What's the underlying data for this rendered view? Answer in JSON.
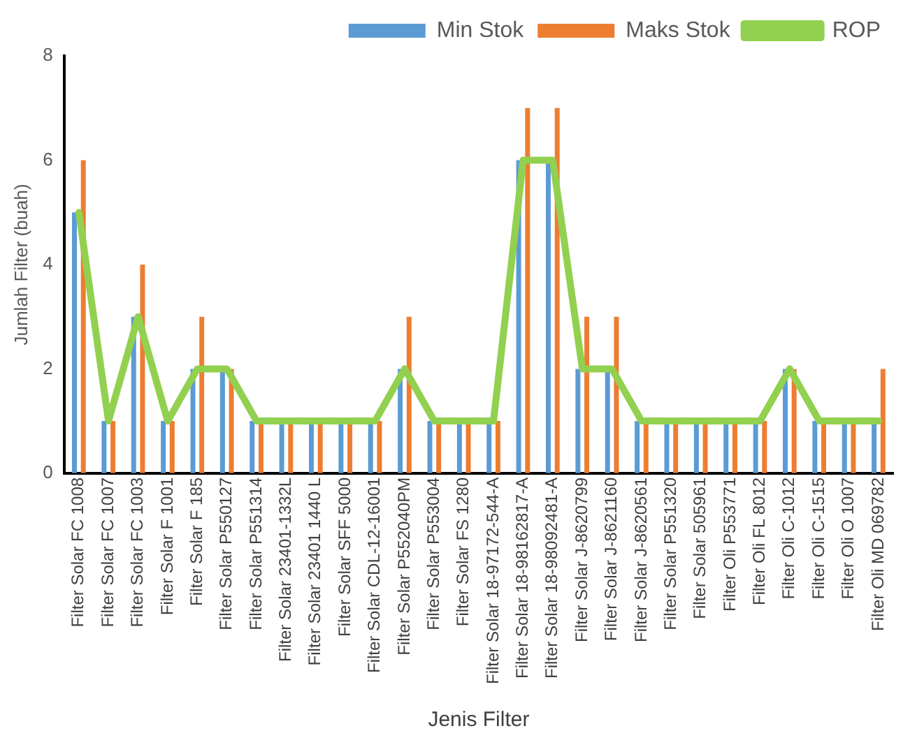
{
  "chart_data": {
    "type": "bar",
    "xlabel": "Jenis Filter",
    "ylabel": "Jumlah Filter (buah)",
    "categories": [
      "Filter Solar FC 1008",
      "Filter Solar FC 1007",
      "Filter Solar FC 1003",
      "Filter Solar F 1001",
      "Filter Solar F 185",
      "Filter Solar P550127",
      "Filter Solar P551314",
      "Filter Solar 23401-1332L",
      "Filter Solar 23401 1440 L",
      "Filter Solar SFF 5000",
      "Filter Solar CDL-12-16001",
      "Filter Solar P552040PM",
      "Filter Solar P553004",
      "Filter Solar FS 1280",
      "Filter Solar 18-97172-544-A",
      "Filter Solar 18-98162817-A",
      "Filter Solar 18-98092481-A",
      "Filter Solar J-8620799",
      "Filter Solar J-8621160",
      "Filter Solar J-8620561",
      "Filter Solar P551320",
      "Filter Solar 505961",
      "Filter Oli P553771",
      "Filter Oli FL 8012",
      "Filter Oli C-1012",
      "Filter Oli C-1515",
      "Filter Oli O 1007",
      "Filter Oli MD 069782"
    ],
    "series": [
      {
        "name": "Min Stok",
        "color": "#5b9bd5",
        "values": [
          5,
          1,
          3,
          1,
          2,
          2,
          1,
          1,
          1,
          1,
          1,
          2,
          1,
          1,
          1,
          6,
          6,
          2,
          2,
          1,
          1,
          1,
          1,
          1,
          2,
          1,
          1,
          1
        ]
      },
      {
        "name": "Maks Stok",
        "color": "#ed7d31",
        "values": [
          6,
          1,
          4,
          1,
          3,
          2,
          1,
          1,
          1,
          1,
          1,
          3,
          1,
          1,
          1,
          7,
          7,
          3,
          3,
          1,
          1,
          1,
          1,
          1,
          2,
          1,
          1,
          2
        ]
      },
      {
        "name": "ROP",
        "type": "line",
        "color": "#92d050",
        "values": [
          5,
          1,
          3,
          1,
          2,
          2,
          1,
          1,
          1,
          1,
          1,
          2,
          1,
          1,
          1,
          6,
          6,
          2,
          2,
          1,
          1,
          1,
          1,
          1,
          2,
          1,
          1,
          1
        ]
      }
    ],
    "ylim": [
      0,
      8
    ],
    "yticks": [
      0,
      2,
      4,
      6,
      8
    ],
    "grid": false,
    "legend": "top right",
    "marker": "none"
  }
}
